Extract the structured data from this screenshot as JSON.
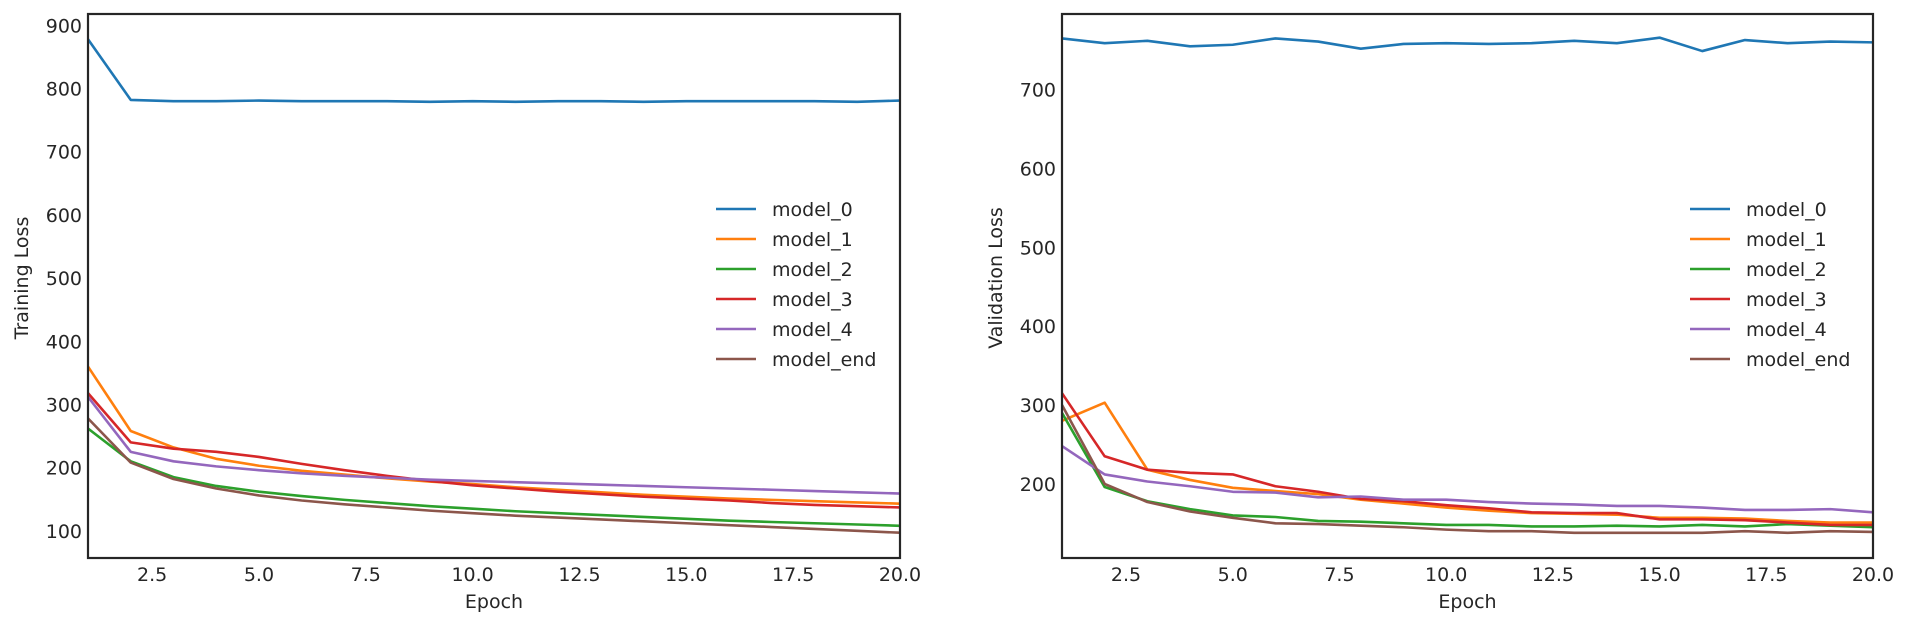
{
  "chart_data": [
    {
      "type": "line",
      "title": "",
      "xlabel": "Epoch",
      "ylabel": "Training Loss",
      "xlim": [
        1,
        20
      ],
      "ylim": [
        57,
        918
      ],
      "xticks": [
        2.5,
        5.0,
        7.5,
        10.0,
        12.5,
        15.0,
        17.5,
        20.0
      ],
      "xtick_labels": [
        "2.5",
        "5.0",
        "7.5",
        "10.0",
        "12.5",
        "15.0",
        "17.5",
        "20.0"
      ],
      "yticks": [
        100,
        200,
        300,
        400,
        500,
        600,
        700,
        800,
        900
      ],
      "ytick_labels": [
        "100",
        "200",
        "300",
        "400",
        "500",
        "600",
        "700",
        "800",
        "900"
      ],
      "grid": false,
      "legend_position": "center-right",
      "x": [
        1,
        2,
        3,
        4,
        5,
        6,
        7,
        8,
        9,
        10,
        11,
        12,
        13,
        14,
        15,
        16,
        17,
        18,
        19,
        20
      ],
      "series": [
        {
          "name": "model_0",
          "color": "#1f77b4",
          "values": [
            878,
            782,
            780,
            780,
            781,
            780,
            780,
            780,
            779,
            780,
            779,
            780,
            780,
            779,
            780,
            780,
            780,
            780,
            779,
            781
          ]
        },
        {
          "name": "model_1",
          "color": "#ff7f0e",
          "values": [
            360,
            258,
            232,
            214,
            203,
            195,
            189,
            183,
            178,
            174,
            169,
            165,
            161,
            157,
            154,
            151,
            149,
            147,
            145,
            143
          ]
        },
        {
          "name": "model_2",
          "color": "#2ca02c",
          "values": [
            262,
            210,
            185,
            171,
            162,
            155,
            149,
            144,
            139,
            135,
            131,
            128,
            125,
            122,
            119,
            116,
            114,
            112,
            110,
            108
          ]
        },
        {
          "name": "model_3",
          "color": "#d62728",
          "values": [
            318,
            240,
            230,
            225,
            217,
            206,
            196,
            187,
            179,
            172,
            167,
            162,
            158,
            154,
            151,
            148,
            144,
            141,
            139,
            137
          ]
        },
        {
          "name": "model_4",
          "color": "#9467bd",
          "values": [
            312,
            225,
            210,
            202,
            196,
            191,
            187,
            184,
            181,
            179,
            177,
            175,
            173,
            171,
            169,
            167,
            165,
            163,
            161,
            159
          ]
        },
        {
          "name": "model_end",
          "color": "#8c564b",
          "values": [
            278,
            208,
            182,
            167,
            156,
            148,
            142,
            137,
            132,
            128,
            124,
            121,
            118,
            115,
            112,
            109,
            106,
            103,
            100,
            97
          ]
        }
      ]
    },
    {
      "type": "line",
      "title": "",
      "xlabel": "Epoch",
      "ylabel": "Validation Loss",
      "xlim": [
        1,
        20
      ],
      "ylim": [
        106,
        796
      ],
      "xticks": [
        2.5,
        5.0,
        7.5,
        10.0,
        12.5,
        15.0,
        17.5,
        20.0
      ],
      "xtick_labels": [
        "2.5",
        "5.0",
        "7.5",
        "10.0",
        "12.5",
        "15.0",
        "17.5",
        "20.0"
      ],
      "yticks": [
        200,
        300,
        400,
        500,
        600,
        700
      ],
      "ytick_labels": [
        "200",
        "300",
        "400",
        "500",
        "600",
        "700"
      ],
      "grid": false,
      "legend_position": "center-right",
      "x": [
        1,
        2,
        3,
        4,
        5,
        6,
        7,
        8,
        9,
        10,
        11,
        12,
        13,
        14,
        15,
        16,
        17,
        18,
        19,
        20
      ],
      "series": [
        {
          "name": "model_0",
          "color": "#1f77b4",
          "values": [
            765,
            759,
            762,
            755,
            757,
            765,
            761,
            752,
            758,
            759,
            758,
            759,
            762,
            759,
            766,
            749,
            763,
            759,
            761,
            760
          ]
        },
        {
          "name": "model_1",
          "color": "#ff7f0e",
          "values": [
            280,
            303,
            218,
            205,
            195,
            191,
            187,
            180,
            175,
            170,
            166,
            163,
            162,
            161,
            157,
            157,
            156,
            153,
            151,
            151
          ]
        },
        {
          "name": "model_2",
          "color": "#2ca02c",
          "values": [
            290,
            196,
            178,
            168,
            160,
            158,
            153,
            152,
            150,
            148,
            148,
            146,
            146,
            147,
            146,
            148,
            146,
            149,
            147,
            145
          ]
        },
        {
          "name": "model_3",
          "color": "#d62728",
          "values": [
            315,
            235,
            218,
            214,
            212,
            197,
            190,
            181,
            178,
            173,
            169,
            164,
            163,
            163,
            155,
            155,
            154,
            151,
            148,
            148
          ]
        },
        {
          "name": "model_4",
          "color": "#9467bd",
          "values": [
            248,
            212,
            203,
            197,
            190,
            189,
            183,
            184,
            180,
            180,
            177,
            175,
            174,
            172,
            172,
            170,
            167,
            167,
            168,
            164
          ]
        },
        {
          "name": "model_end",
          "color": "#8c564b",
          "values": [
            300,
            200,
            177,
            165,
            157,
            150,
            149,
            147,
            145,
            142,
            140,
            140,
            138,
            138,
            138,
            138,
            140,
            138,
            140,
            139
          ]
        }
      ]
    }
  ]
}
